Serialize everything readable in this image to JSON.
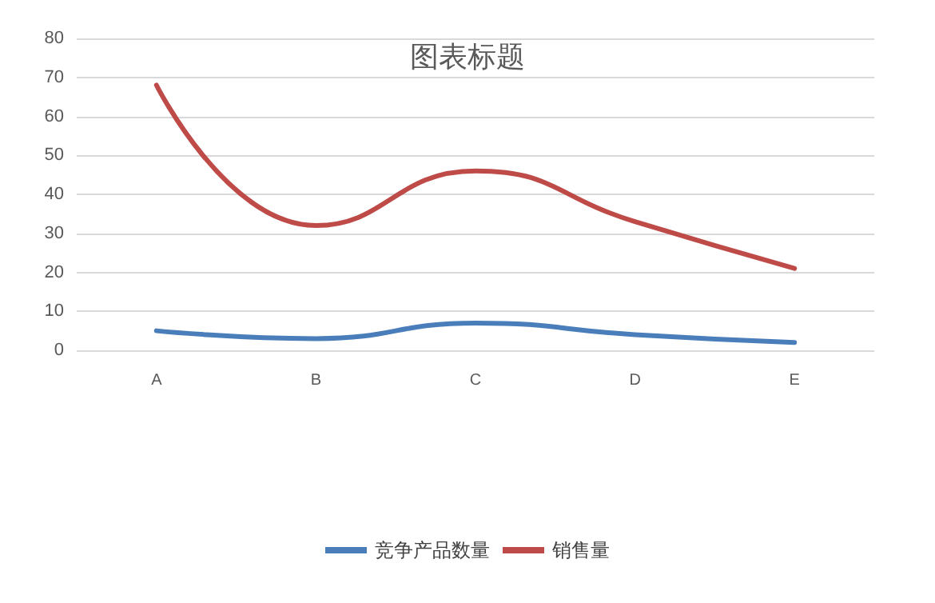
{
  "chart_data": {
    "type": "line",
    "title": "图表标题",
    "categories": [
      "A",
      "B",
      "C",
      "D",
      "E"
    ],
    "series": [
      {
        "name": "竞争产品数量",
        "color": "#4a7ebb",
        "values": [
          5,
          3,
          7,
          4,
          2
        ]
      },
      {
        "name": "销售量",
        "color": "#be4b48",
        "values": [
          68,
          32,
          46,
          33,
          21
        ]
      }
    ],
    "ylim": [
      0,
      80
    ],
    "yticks": [
      0,
      10,
      20,
      30,
      40,
      50,
      60,
      70,
      80
    ],
    "grid": "y",
    "legend": "bottom",
    "marker": "none",
    "line_style": "solid"
  }
}
